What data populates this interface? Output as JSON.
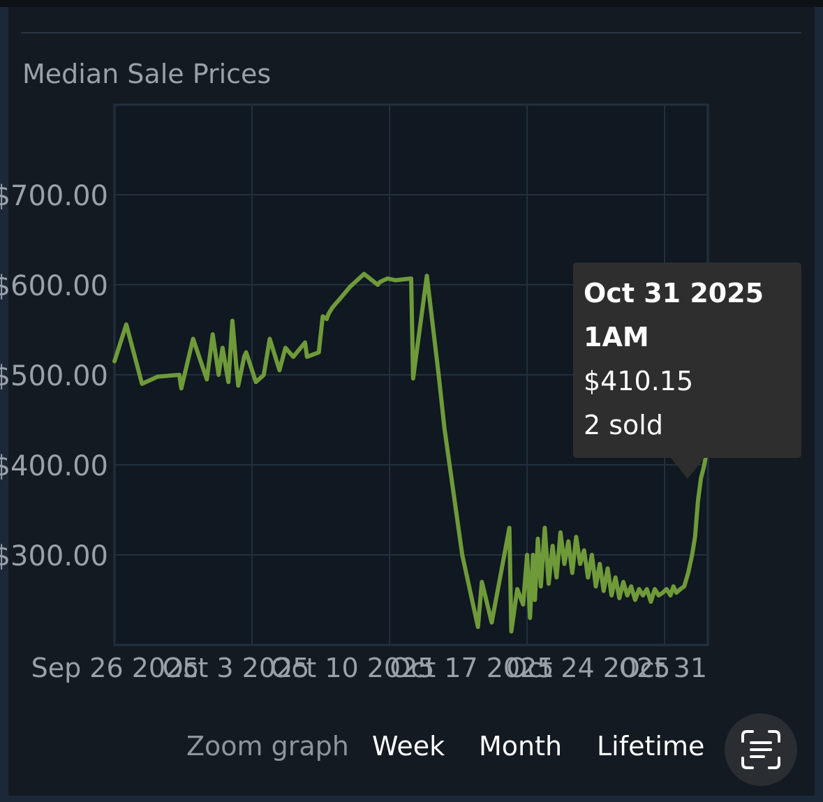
{
  "chart_data": {
    "type": "line",
    "title": "Median Sale Prices",
    "y_ticks": [
      "$700.00",
      "$600.00",
      "$500.00",
      "$400.00",
      "$300.00"
    ],
    "x_ticks": [
      "Sep 26 2025",
      "Oct 3 2025",
      "Oct 10 2025",
      "Oct 17 2025",
      "Oct 24 2025",
      "Oct 31"
    ],
    "ylim": [
      200,
      800
    ],
    "grid": true,
    "line_color": "#6f9a3a",
    "series": [
      {
        "x": [
          0.0,
          0.6,
          1.4,
          2.2,
          3.3,
          3.4,
          4.0,
          4.7,
          5.0,
          5.3,
          5.5,
          5.8,
          6.0,
          6.2,
          6.3,
          6.6,
          6.7,
          7.2,
          7.5,
          7.6,
          7.9,
          8.4,
          8.7,
          9.1,
          9.7,
          9.8,
          10.4,
          10.6,
          10.8,
          10.9,
          11.1,
          11.3,
          11.5,
          12.0,
          12.7,
          13.4,
          13.5,
          13.7,
          13.9,
          14.3,
          15.1,
          15.2,
          15.9,
          16.5,
          16.8,
          17.7,
          18.5,
          18.7,
          19.2,
          20.1,
          20.2,
          20.5,
          20.8,
          21.0,
          21.15,
          21.3,
          21.4,
          21.55,
          21.7,
          21.9,
          22.1,
          22.3,
          22.5,
          22.7,
          22.9,
          23.1,
          23.3,
          23.5,
          23.7,
          23.9,
          24.1,
          24.3,
          24.5,
          24.7,
          24.9,
          25.1,
          25.3,
          25.5,
          25.7,
          25.9,
          26.1,
          26.3,
          26.5,
          26.7,
          26.9,
          27.1,
          27.3,
          27.5,
          27.7,
          27.9,
          28.1,
          28.3,
          28.45,
          28.6,
          28.8,
          29.0,
          29.2,
          29.4,
          29.55,
          29.7,
          29.85,
          30.0,
          30.1,
          30.2
        ],
        "y": [
          515,
          556,
          490,
          498,
          500,
          485,
          540,
          495,
          545,
          500,
          530,
          492,
          560,
          510,
          488,
          520,
          525,
          492,
          498,
          500,
          540,
          505,
          530,
          520,
          536,
          520,
          525,
          565,
          562,
          568,
          575,
          580,
          585,
          598,
          612,
          600,
          603,
          605,
          607,
          605,
          607,
          496,
          610,
          500,
          440,
          300,
          220,
          270,
          225,
          330,
          215,
          262,
          245,
          300,
          230,
          300,
          250,
          318,
          265,
          330,
          268,
          310,
          275,
          325,
          290,
          315,
          280,
          320,
          290,
          305,
          275,
          300,
          265,
          290,
          260,
          285,
          255,
          275,
          252,
          270,
          255,
          265,
          250,
          262,
          255,
          262,
          248,
          262,
          255,
          258,
          262,
          255,
          265,
          258,
          262,
          265,
          280,
          300,
          320,
          360,
          385,
          398,
          410,
          410
        ]
      }
    ],
    "tooltip": {
      "date": "Oct 31 2025",
      "time": "1AM",
      "price": "$410.15",
      "sold": "2 sold"
    }
  },
  "zoom": {
    "label": "Zoom graph",
    "week": "Week",
    "month": "Month",
    "lifetime": "Lifetime"
  },
  "icons": {
    "scan": "text-scan-icon"
  }
}
